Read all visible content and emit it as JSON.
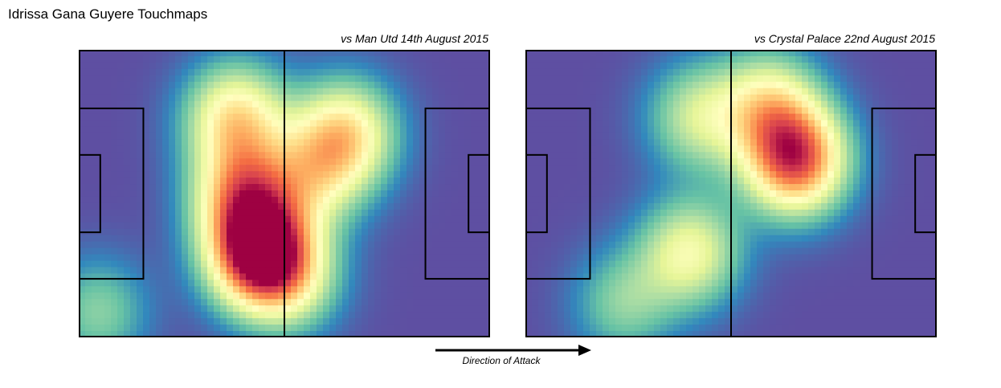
{
  "figure": {
    "title": "Idrissa Gana Guyere Touchmaps",
    "direction_label": "Direction of Attack"
  },
  "chart_data": [
    {
      "type": "heatmap",
      "title": "vs Man Utd 14th August 2015",
      "colormap": "Spectral_r",
      "pitch": {
        "length": 105,
        "width": 68
      },
      "hotspots": [
        {
          "x": 46,
          "y": 20,
          "intensity": 1.0
        },
        {
          "x": 42,
          "y": 34,
          "intensity": 0.6
        },
        {
          "x": 40,
          "y": 52,
          "intensity": 0.55
        },
        {
          "x": 68,
          "y": 48,
          "intensity": 0.55
        },
        {
          "x": 60,
          "y": 38,
          "intensity": 0.35
        },
        {
          "x": 54,
          "y": 14,
          "intensity": 0.35
        },
        {
          "x": 5,
          "y": 6,
          "intensity": 0.25
        }
      ]
    },
    {
      "type": "heatmap",
      "title": "vs Crystal Palace 22nd August 2015",
      "colormap": "Spectral_r",
      "pitch": {
        "length": 105,
        "width": 68
      },
      "hotspots": [
        {
          "x": 69,
          "y": 42,
          "intensity": 0.85
        },
        {
          "x": 62,
          "y": 55,
          "intensity": 0.45
        },
        {
          "x": 42,
          "y": 20,
          "intensity": 0.45
        },
        {
          "x": 44,
          "y": 52,
          "intensity": 0.35
        },
        {
          "x": 25,
          "y": 8,
          "intensity": 0.25
        }
      ]
    }
  ]
}
